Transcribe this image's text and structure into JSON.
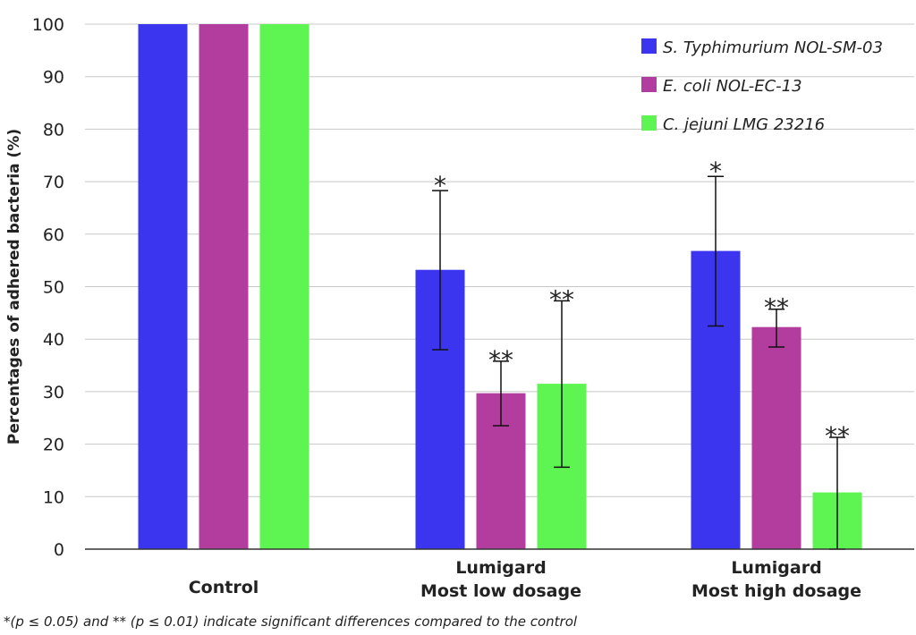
{
  "chart_data": {
    "type": "bar",
    "ylabel": "Percentages of adhered bacteria (%)",
    "xlabel": "",
    "ylim": [
      0,
      100
    ],
    "yticks": [
      0,
      10,
      20,
      30,
      40,
      50,
      60,
      70,
      80,
      90,
      100
    ],
    "grid": true,
    "legend_position": "top-right",
    "categories": [
      [
        "Control"
      ],
      [
        "Lumigard",
        "Most low dosage"
      ],
      [
        "Lumigard",
        "Most high dosage"
      ]
    ],
    "series": [
      {
        "name": "S. Typhimurium NOL-SM-03",
        "color": "#3b35f0",
        "values": [
          100,
          53.2,
          56.8
        ],
        "error_low": [
          null,
          38.0,
          42.5
        ],
        "error_high": [
          null,
          68.3,
          71.0
        ],
        "significance": [
          "",
          "*",
          "*"
        ]
      },
      {
        "name": "E. coli NOL-EC-13",
        "color": "#b33d9e",
        "values": [
          100,
          29.7,
          42.3
        ],
        "error_low": [
          null,
          23.5,
          38.5
        ],
        "error_high": [
          null,
          35.8,
          45.7
        ],
        "significance": [
          "",
          "**",
          "**"
        ]
      },
      {
        "name": "C. jejuni LMG 23216",
        "color": "#5ef552",
        "values": [
          100,
          31.5,
          10.8
        ],
        "error_low": [
          null,
          15.6,
          0
        ],
        "error_high": [
          null,
          47.3,
          21.3
        ],
        "significance": [
          "",
          "**",
          "**"
        ]
      }
    ]
  },
  "footnote": "*(p ≤ 0.05) and ** (p ≤ 0.01) indicate significant differences compared to the control"
}
